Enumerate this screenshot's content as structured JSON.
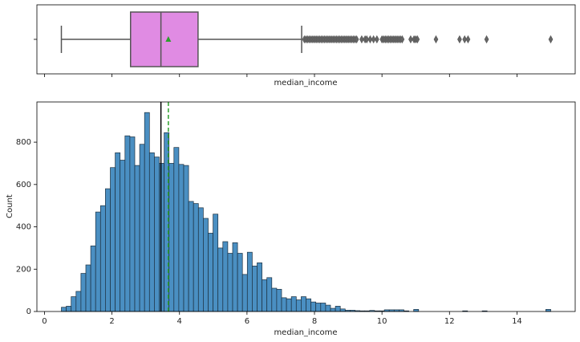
{
  "chart_data": [
    {
      "type": "box",
      "xlabel": "median_income",
      "xlim": [
        -0.225,
        15.725
      ],
      "xticks": [
        0,
        2,
        4,
        6,
        8,
        10,
        12,
        14
      ],
      "whislo": 0.5,
      "q1": 2.55,
      "med": 3.45,
      "q3": 4.55,
      "whishi": 7.62,
      "mean": 3.67,
      "fliers": [
        7.7,
        7.75,
        7.8,
        7.85,
        7.9,
        7.95,
        8.0,
        8.05,
        8.1,
        8.15,
        8.2,
        8.25,
        8.3,
        8.35,
        8.4,
        8.45,
        8.5,
        8.55,
        8.6,
        8.65,
        8.7,
        8.75,
        8.8,
        8.85,
        8.9,
        8.95,
        9.0,
        9.05,
        9.1,
        9.15,
        9.2,
        9.25,
        9.4,
        9.5,
        9.55,
        9.65,
        9.75,
        9.85,
        10.0,
        10.05,
        10.1,
        10.15,
        10.2,
        10.25,
        10.3,
        10.35,
        10.4,
        10.45,
        10.5,
        10.55,
        10.6,
        10.85,
        10.95,
        11.0,
        11.05,
        11.6,
        12.3,
        12.45,
        12.55,
        13.1,
        15.0
      ],
      "color": "#e08be3",
      "mean_color": "#2ca02c"
    },
    {
      "type": "histogram",
      "xlabel": "median_income",
      "ylabel": "Count",
      "xlim": [
        -0.225,
        15.725
      ],
      "xticks": [
        0,
        2,
        4,
        6,
        8,
        10,
        12,
        14
      ],
      "ylim": [
        0,
        990
      ],
      "yticks": [
        0,
        200,
        400,
        600,
        800
      ],
      "bins": [
        0.5,
        0.645,
        0.79,
        0.935,
        1.08,
        1.225,
        1.37,
        1.515,
        1.66,
        1.805,
        1.95,
        2.095,
        2.24,
        2.385,
        2.53,
        2.675,
        2.82,
        2.965,
        3.11,
        3.255,
        3.4,
        3.545,
        3.69,
        3.835,
        3.98,
        4.125,
        4.27,
        4.415,
        4.56,
        4.705,
        4.85,
        4.995,
        5.14,
        5.285,
        5.43,
        5.575,
        5.72,
        5.865,
        6.01,
        6.155,
        6.3,
        6.445,
        6.59,
        6.735,
        6.88,
        7.025,
        7.17,
        7.315,
        7.46,
        7.605,
        7.75,
        7.895,
        8.04,
        8.185,
        8.33,
        8.475,
        8.62,
        8.765,
        8.91,
        9.055,
        9.2,
        9.345,
        9.49,
        9.635,
        9.78,
        9.925,
        10.07,
        10.215,
        10.36,
        10.505,
        10.65,
        10.795,
        10.94,
        11.085,
        11.23,
        11.375,
        11.52,
        11.665,
        11.81,
        11.955,
        12.1,
        12.245,
        12.39,
        12.535,
        12.68,
        12.825,
        12.97,
        13.115,
        13.26,
        13.405,
        13.55,
        13.695,
        13.84,
        13.985,
        14.13,
        14.275,
        14.42,
        14.565,
        14.71,
        14.855,
        15.0
      ],
      "counts": [
        20,
        25,
        70,
        95,
        180,
        220,
        310,
        470,
        500,
        580,
        680,
        750,
        715,
        830,
        825,
        690,
        790,
        940,
        750,
        730,
        700,
        845,
        700,
        775,
        695,
        690,
        520,
        510,
        490,
        440,
        370,
        460,
        300,
        330,
        275,
        325,
        275,
        175,
        280,
        215,
        230,
        150,
        160,
        110,
        105,
        65,
        60,
        70,
        55,
        70,
        60,
        45,
        40,
        40,
        30,
        15,
        25,
        12,
        6,
        6,
        4,
        3,
        3,
        5,
        3,
        3,
        8,
        8,
        8,
        8,
        3,
        0,
        10,
        0,
        0,
        0,
        0,
        0,
        0,
        0,
        0,
        0,
        3,
        0,
        0,
        0,
        3,
        0,
        0,
        0,
        0,
        0,
        0,
        0,
        0,
        0,
        0,
        0,
        0,
        10
      ],
      "color": "#4a8fc2",
      "median": 3.45,
      "mean": 3.67,
      "median_color": "#000000",
      "mean_color": "#2ca02c"
    }
  ]
}
